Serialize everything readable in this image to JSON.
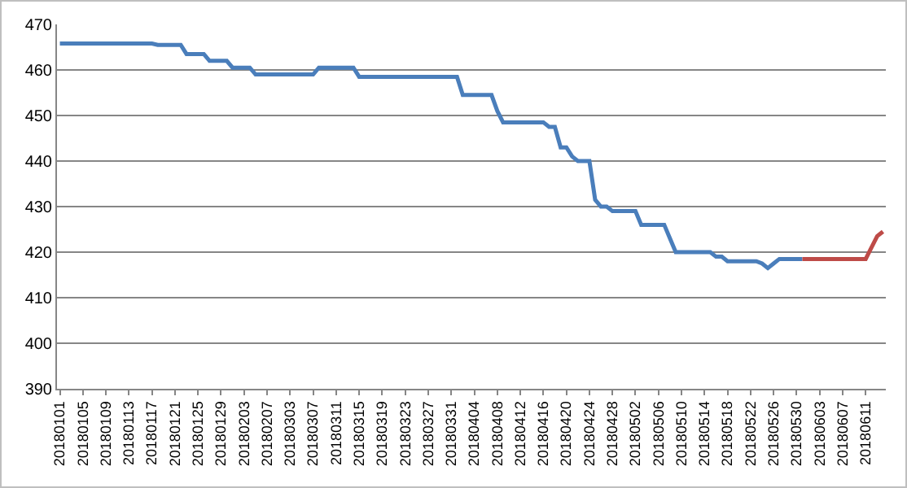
{
  "chart_data": {
    "type": "line",
    "categories": [
      "20180101",
      null,
      null,
      null,
      "20180105",
      null,
      null,
      null,
      "20180109",
      null,
      null,
      null,
      "20180113",
      null,
      null,
      null,
      "20180117",
      null,
      null,
      null,
      "20180121",
      null,
      null,
      null,
      "20180125",
      null,
      null,
      null,
      "20180129",
      null,
      null,
      null,
      "20180203",
      null,
      null,
      null,
      "20180207",
      null,
      null,
      null,
      "20180303",
      null,
      null,
      null,
      "20180307",
      null,
      null,
      null,
      "20180311",
      null,
      null,
      null,
      "20180315",
      null,
      null,
      null,
      "20180319",
      null,
      null,
      null,
      "20180323",
      null,
      null,
      null,
      "20180327",
      null,
      null,
      null,
      "20180331",
      null,
      null,
      null,
      "20180404",
      null,
      null,
      null,
      "20180408",
      null,
      null,
      null,
      "20180412",
      null,
      null,
      null,
      "20180416",
      null,
      null,
      null,
      "20180420",
      null,
      null,
      null,
      "20180424",
      null,
      null,
      null,
      "20180428",
      null,
      null,
      null,
      "20180502",
      null,
      null,
      null,
      "20180506",
      null,
      null,
      null,
      "20180510",
      null,
      null,
      null,
      "20180514",
      null,
      null,
      null,
      "20180518",
      null,
      null,
      null,
      "20180522",
      null,
      null,
      null,
      "20180526",
      null,
      null,
      null,
      "20180530",
      null,
      null,
      null,
      "20180603",
      null,
      null,
      null,
      "20180607",
      null,
      null,
      null,
      "20180611",
      null,
      null,
      null
    ],
    "series": [
      {
        "color": "#4a7ebb",
        "values": [
          465.8,
          465.8,
          465.8,
          465.8,
          465.8,
          465.8,
          465.8,
          465.8,
          465.8,
          465.8,
          465.8,
          465.8,
          465.8,
          465.8,
          465.8,
          465.8,
          465.8,
          465.5,
          465.5,
          465.5,
          465.5,
          465.5,
          463.5,
          463.5,
          463.5,
          463.5,
          462,
          462,
          462,
          462,
          460.5,
          460.5,
          460.5,
          460.5,
          459,
          459,
          459,
          459,
          459,
          459,
          459,
          459,
          459,
          459,
          459,
          460.5,
          460.5,
          460.5,
          460.5,
          460.5,
          460.5,
          460.5,
          458.5,
          458.5,
          458.5,
          458.5,
          458.5,
          458.5,
          458.5,
          458.5,
          458.5,
          458.5,
          458.5,
          458.5,
          458.5,
          458.5,
          458.5,
          458.5,
          458.5,
          458.5,
          454.5,
          454.5,
          454.5,
          454.5,
          454.5,
          454.5,
          451,
          448.5,
          448.5,
          448.5,
          448.5,
          448.5,
          448.5,
          448.5,
          448.5,
          447.5,
          447.5,
          443,
          443,
          441,
          440,
          440,
          440,
          431.5,
          430,
          430,
          429,
          429,
          429,
          429,
          429,
          426,
          426,
          426,
          426,
          426,
          423,
          420,
          420,
          420,
          420,
          420,
          420,
          420,
          419,
          419,
          418,
          418,
          418,
          418,
          418,
          418,
          417.5,
          416.5,
          417.5,
          418.5,
          418.5,
          418.5,
          418.5,
          418.5,
          null,
          null,
          null,
          null,
          null,
          null,
          null,
          null,
          null,
          null,
          null,
          null,
          null,
          null
        ]
      },
      {
        "color": "#be4b48",
        "values": [
          null,
          null,
          null,
          null,
          null,
          null,
          null,
          null,
          null,
          null,
          null,
          null,
          null,
          null,
          null,
          null,
          null,
          null,
          null,
          null,
          null,
          null,
          null,
          null,
          null,
          null,
          null,
          null,
          null,
          null,
          null,
          null,
          null,
          null,
          null,
          null,
          null,
          null,
          null,
          null,
          null,
          null,
          null,
          null,
          null,
          null,
          null,
          null,
          null,
          null,
          null,
          null,
          null,
          null,
          null,
          null,
          null,
          null,
          null,
          null,
          null,
          null,
          null,
          null,
          null,
          null,
          null,
          null,
          null,
          null,
          null,
          null,
          null,
          null,
          null,
          null,
          null,
          null,
          null,
          null,
          null,
          null,
          null,
          null,
          null,
          null,
          null,
          null,
          null,
          null,
          null,
          null,
          null,
          null,
          null,
          null,
          null,
          null,
          null,
          null,
          null,
          null,
          null,
          null,
          null,
          null,
          null,
          null,
          null,
          null,
          null,
          null,
          null,
          null,
          null,
          null,
          null,
          null,
          null,
          null,
          null,
          null,
          null,
          null,
          null,
          null,
          null,
          null,
          null,
          418.5,
          418.5,
          418.5,
          418.5,
          418.5,
          418.5,
          418.5,
          418.5,
          418.5,
          418.5,
          418.5,
          418.5,
          421,
          423.5,
          424.5
        ]
      }
    ],
    "ylim": [
      390,
      470
    ],
    "yticks": [
      390,
      400,
      410,
      420,
      430,
      440,
      450,
      460,
      470
    ],
    "grid": "y"
  }
}
